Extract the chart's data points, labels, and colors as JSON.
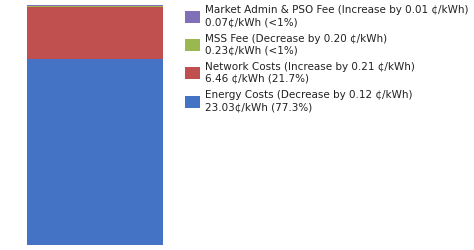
{
  "segments": [
    {
      "label": "Market Admin & PSO Fee (Increase by 0.01 ¢/kWh)\n0.07¢/kWh (<1%)",
      "value": 0.07,
      "color": "#8070B8"
    },
    {
      "label": "MSS Fee (Decrease by 0.20 ¢/kWh)\n0.23¢/kWh (<1%)",
      "value": 0.23,
      "color": "#99B850"
    },
    {
      "label": "Network Costs (Increase by 0.21 ¢/kWh)\n6.46 ¢/kWh (21.7%)",
      "value": 6.46,
      "color": "#C05050"
    },
    {
      "label": "Energy Costs (Decrease by 0.12 ¢/kWh)\n23.03¢/kWh (77.3%)",
      "value": 23.03,
      "color": "#4472C4"
    }
  ],
  "figsize": [
    4.74,
    2.5
  ],
  "dpi": 100,
  "legend_fontsize": 7.5,
  "background_color": "#FFFFFF"
}
